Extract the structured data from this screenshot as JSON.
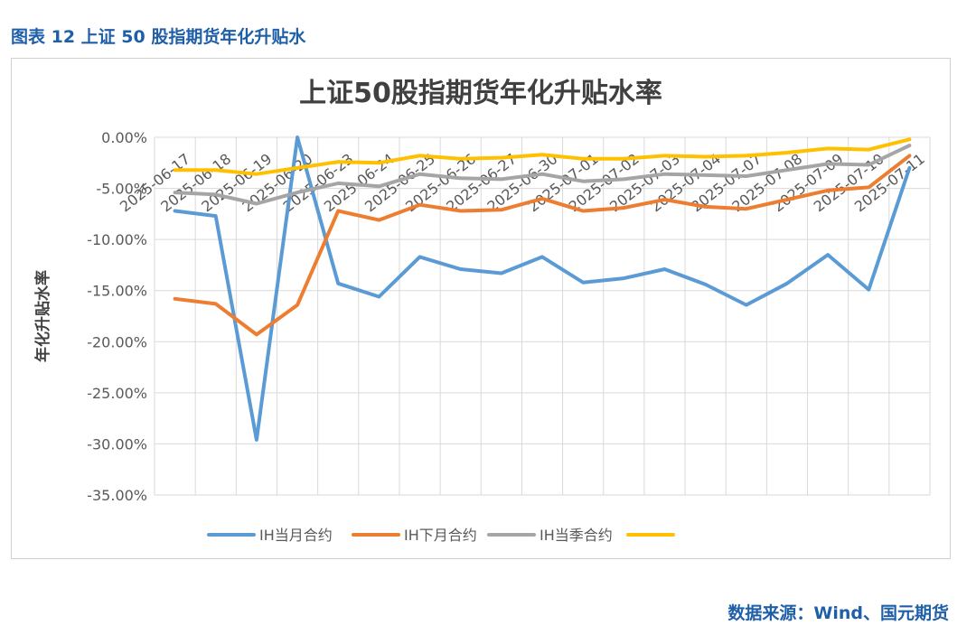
{
  "figure_caption": "图表 12  上证 50 股指期货年化升贴水",
  "source_note": "数据来源：Wind、国元期货",
  "colors": {
    "caption": "#1f5fa8",
    "series": [
      "#5b9bd5",
      "#ed7d31",
      "#a5a5a5",
      "#ffc000"
    ],
    "grid": "#d9d9d9",
    "axis_text": "#595959"
  },
  "chart_data": {
    "type": "line",
    "title": "上证50股指期货年化升贴水率",
    "ylabel": "年化升贴水率",
    "xlabel": "",
    "ylim": [
      -35,
      0
    ],
    "yticks": [
      0,
      -5,
      -10,
      -15,
      -20,
      -25,
      -30,
      -35
    ],
    "ytick_labels": [
      "0.00%",
      "-5.00%",
      "-10.00%",
      "-15.00%",
      "-20.00%",
      "-25.00%",
      "-30.00%",
      "-35.00%"
    ],
    "grid": true,
    "legend_position": "bottom",
    "categories": [
      "2025-06-17",
      "2025-06-18",
      "2025-06-19",
      "2025-06-20",
      "2025-06-23",
      "2025-06-24",
      "2025-06-25",
      "2025-06-26",
      "2025-06-27",
      "2025-06-30",
      "2025-07-01",
      "2025-07-02",
      "2025-07-03",
      "2025-07-04",
      "2025-07-07",
      "2025-07-08",
      "2025-07-09",
      "2025-07-10",
      "2025-07-11"
    ],
    "series": [
      {
        "name": "IH当月合约",
        "values": [
          -7.2,
          -7.7,
          -29.6,
          0.0,
          -14.3,
          -15.6,
          -11.7,
          -12.9,
          -13.3,
          -11.7,
          -14.2,
          -13.8,
          -12.9,
          -14.4,
          -16.4,
          -14.3,
          -11.5,
          -14.9,
          -3.0
        ]
      },
      {
        "name": "IH下月合约",
        "values": [
          -15.8,
          -16.3,
          -19.3,
          -16.4,
          -7.2,
          -8.1,
          -6.6,
          -7.2,
          -7.1,
          -6.0,
          -7.2,
          -6.9,
          -6.1,
          -6.8,
          -7.0,
          -6.1,
          -5.2,
          -4.9,
          -1.8
        ]
      },
      {
        "name": "IH当季合约",
        "values": [
          -5.4,
          -5.6,
          -6.5,
          -5.4,
          -4.5,
          -4.8,
          -3.6,
          -4.0,
          -4.1,
          -3.6,
          -4.3,
          -4.1,
          -3.6,
          -3.7,
          -3.8,
          -3.2,
          -2.6,
          -2.7,
          -0.8
        ]
      },
      {
        "name": "",
        "values": [
          -3.2,
          -3.2,
          -3.6,
          -3.0,
          -2.4,
          -2.5,
          -1.8,
          -2.1,
          -2.0,
          -1.7,
          -2.1,
          -2.1,
          -1.8,
          -1.9,
          -1.8,
          -1.5,
          -1.1,
          -1.2,
          -0.2
        ]
      }
    ]
  }
}
